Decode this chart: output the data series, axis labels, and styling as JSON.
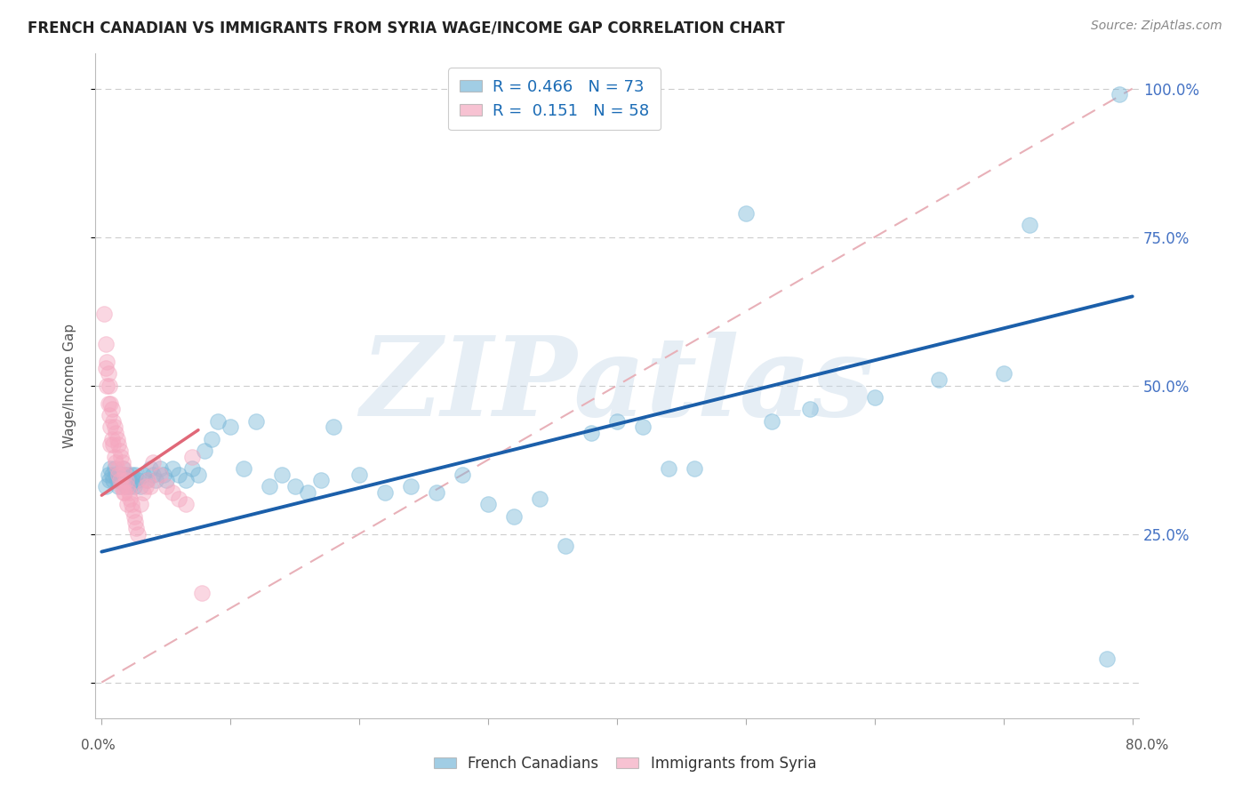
{
  "title": "FRENCH CANADIAN VS IMMIGRANTS FROM SYRIA WAGE/INCOME GAP CORRELATION CHART",
  "source": "Source: ZipAtlas.com",
  "ylabel": "Wage/Income Gap",
  "watermark": "ZIPatlas",
  "xlim": [
    -0.005,
    0.805
  ],
  "ylim": [
    -0.06,
    1.06
  ],
  "x_ticks": [
    0.0,
    0.1,
    0.2,
    0.3,
    0.4,
    0.5,
    0.6,
    0.7,
    0.8
  ],
  "x_tick_labels": [
    "",
    "",
    "",
    "",
    "",
    "",
    "",
    "",
    ""
  ],
  "x_outer_labels": [
    "0.0%",
    "80.0%"
  ],
  "y_ticks": [
    0.0,
    0.25,
    0.5,
    0.75,
    1.0
  ],
  "y_right_labels": [
    "",
    "25.0%",
    "50.0%",
    "75.0%",
    "100.0%"
  ],
  "blue_color": "#7ab8d9",
  "pink_color": "#f5a8c0",
  "blue_line_color": "#1b5faa",
  "pink_line_color": "#e06878",
  "ref_line_color": "#e8b0b8",
  "grid_color": "#cccccc",
  "blue_scatter_x": [
    0.003,
    0.005,
    0.006,
    0.007,
    0.008,
    0.009,
    0.01,
    0.011,
    0.012,
    0.013,
    0.014,
    0.015,
    0.016,
    0.017,
    0.018,
    0.019,
    0.02,
    0.021,
    0.022,
    0.023,
    0.024,
    0.025,
    0.026,
    0.028,
    0.03,
    0.032,
    0.035,
    0.038,
    0.04,
    0.042,
    0.045,
    0.048,
    0.05,
    0.055,
    0.06,
    0.065,
    0.07,
    0.075,
    0.08,
    0.085,
    0.09,
    0.1,
    0.11,
    0.12,
    0.13,
    0.14,
    0.15,
    0.16,
    0.17,
    0.18,
    0.2,
    0.22,
    0.24,
    0.26,
    0.28,
    0.3,
    0.32,
    0.34,
    0.36,
    0.38,
    0.4,
    0.42,
    0.44,
    0.46,
    0.5,
    0.52,
    0.55,
    0.6,
    0.65,
    0.7,
    0.72,
    0.78,
    0.79
  ],
  "blue_scatter_y": [
    0.33,
    0.35,
    0.34,
    0.36,
    0.35,
    0.34,
    0.36,
    0.35,
    0.34,
    0.33,
    0.35,
    0.34,
    0.36,
    0.35,
    0.34,
    0.33,
    0.35,
    0.34,
    0.33,
    0.35,
    0.34,
    0.33,
    0.35,
    0.34,
    0.33,
    0.35,
    0.34,
    0.36,
    0.35,
    0.34,
    0.36,
    0.35,
    0.34,
    0.36,
    0.35,
    0.34,
    0.36,
    0.35,
    0.39,
    0.41,
    0.44,
    0.43,
    0.36,
    0.44,
    0.33,
    0.35,
    0.33,
    0.32,
    0.34,
    0.43,
    0.35,
    0.32,
    0.33,
    0.32,
    0.35,
    0.3,
    0.28,
    0.31,
    0.23,
    0.42,
    0.44,
    0.43,
    0.36,
    0.36,
    0.79,
    0.44,
    0.46,
    0.48,
    0.51,
    0.52,
    0.77,
    0.04,
    0.99
  ],
  "pink_scatter_x": [
    0.002,
    0.003,
    0.003,
    0.004,
    0.004,
    0.005,
    0.005,
    0.006,
    0.006,
    0.007,
    0.007,
    0.007,
    0.008,
    0.008,
    0.009,
    0.009,
    0.01,
    0.01,
    0.011,
    0.011,
    0.012,
    0.012,
    0.013,
    0.013,
    0.014,
    0.014,
    0.015,
    0.015,
    0.016,
    0.016,
    0.017,
    0.017,
    0.018,
    0.018,
    0.019,
    0.02,
    0.02,
    0.021,
    0.022,
    0.023,
    0.024,
    0.025,
    0.026,
    0.027,
    0.028,
    0.03,
    0.032,
    0.034,
    0.036,
    0.038,
    0.04,
    0.045,
    0.05,
    0.055,
    0.06,
    0.065,
    0.07,
    0.078
  ],
  "pink_scatter_y": [
    0.62,
    0.57,
    0.53,
    0.54,
    0.5,
    0.52,
    0.47,
    0.5,
    0.45,
    0.47,
    0.43,
    0.4,
    0.46,
    0.41,
    0.44,
    0.4,
    0.43,
    0.38,
    0.42,
    0.37,
    0.41,
    0.36,
    0.4,
    0.35,
    0.39,
    0.34,
    0.38,
    0.33,
    0.37,
    0.33,
    0.36,
    0.32,
    0.35,
    0.32,
    0.34,
    0.33,
    0.3,
    0.32,
    0.31,
    0.3,
    0.29,
    0.28,
    0.27,
    0.26,
    0.25,
    0.3,
    0.32,
    0.33,
    0.34,
    0.33,
    0.37,
    0.35,
    0.33,
    0.32,
    0.31,
    0.3,
    0.38,
    0.15
  ],
  "blue_line_x0": 0.0,
  "blue_line_x1": 0.8,
  "blue_line_y0": 0.22,
  "blue_line_y1": 0.65,
  "pink_line_x0": 0.0,
  "pink_line_x1": 0.075,
  "pink_line_y0": 0.315,
  "pink_line_y1": 0.425,
  "ref_line_x0": 0.0,
  "ref_line_x1": 0.8,
  "ref_line_y0": 0.0,
  "ref_line_y1": 1.0
}
